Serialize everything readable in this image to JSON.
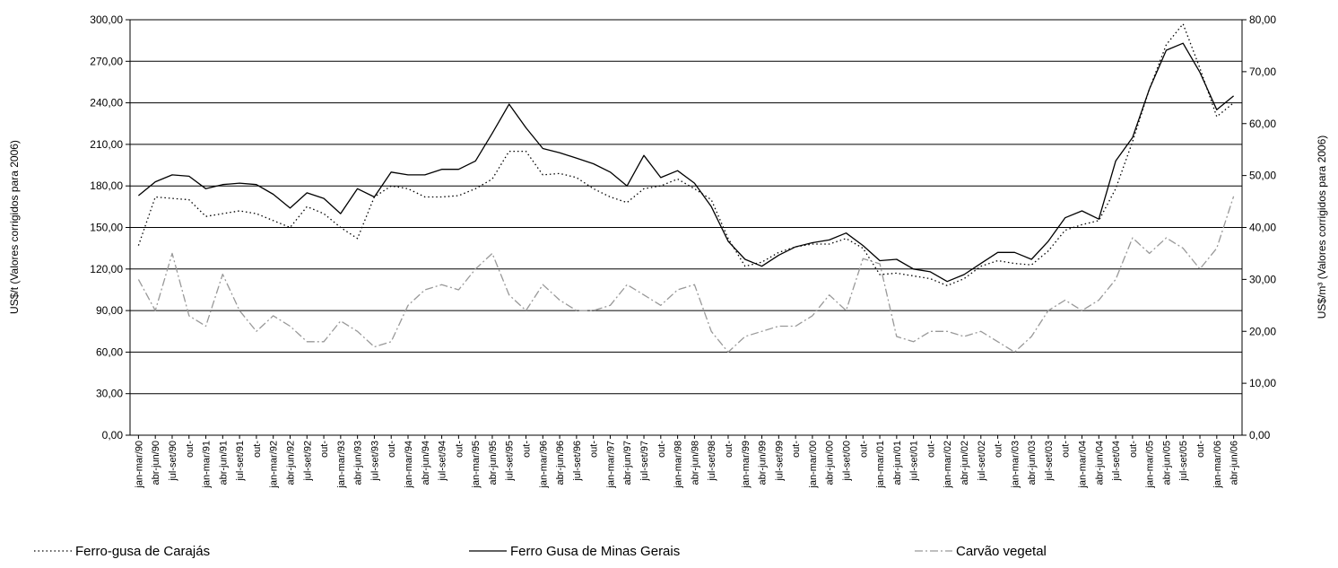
{
  "chart_data": {
    "type": "line",
    "y_label": "US$/t (Valores corrigidos para 2006)",
    "y2_label": "US$/m³ (Valores corrigidos para 2006)",
    "categories": [
      "jan-mar/90",
      "abr-jun/90",
      "jul-set/90",
      "out-",
      "jan-mar/91",
      "abr-jun/91",
      "jul-set/91",
      "out-",
      "jan-mar/92",
      "abr-jun/92",
      "jul-set/92",
      "out-",
      "jan-mar/93",
      "abr-jun/93",
      "jul-set/93",
      "out-",
      "jan-mar/94",
      "abr-jun/94",
      "jul-set/94",
      "out-",
      "jan-mar/95",
      "abr-jun/95",
      "jul-set/95",
      "out-",
      "jan-mar/96",
      "abr-jun/96",
      "jul-set/96",
      "out-",
      "jan-mar/97",
      "abr-jun/97",
      "jul-set/97",
      "out-",
      "jan-mar/98",
      "abr-jun/98",
      "jul-set/98",
      "out-",
      "jan-mar/99",
      "abr-jun/99",
      "jul-set/99",
      "out-",
      "jan-mar/00",
      "abr-jun/00",
      "jul-set/00",
      "out-",
      "jan-mar/01",
      "abr-jun/01",
      "jul-set/01",
      "out-",
      "jan-mar/02",
      "abr-jun/02",
      "jul-set/02",
      "out-",
      "jan-mar/03",
      "abr-jun/03",
      "jul-set/03",
      "out-",
      "jan-mar/04",
      "abr-jun/04",
      "jul-set/04",
      "out-",
      "jan-mar/05",
      "abr-jun/05",
      "jul-set/05",
      "out-",
      "jan-mar/06",
      "abr-jun/06"
    ],
    "series": [
      {
        "name": "Ferro-gusa de Carajás",
        "color": "#000000",
        "line_style": "dotted",
        "values": [
          137,
          172,
          171,
          170,
          158,
          160,
          162,
          160,
          155,
          150,
          165,
          160,
          150,
          142,
          172,
          180,
          178,
          172,
          172,
          173,
          178,
          185,
          205,
          205,
          188,
          189,
          186,
          178,
          172,
          168,
          178,
          180,
          185,
          178,
          170,
          142,
          122,
          125,
          132,
          136,
          138,
          138,
          142,
          135,
          116,
          117,
          115,
          113,
          108,
          113,
          122,
          126,
          124,
          123,
          133,
          148,
          152,
          155,
          178,
          212,
          250,
          282,
          297,
          265,
          230,
          240
        ]
      },
      {
        "name": "Ferro Gusa de Minas Gerais",
        "color": "#000000",
        "line_style": "solid",
        "values": [
          173,
          183,
          188,
          187,
          178,
          181,
          182,
          181,
          174,
          164,
          175,
          171,
          160,
          178,
          172,
          190,
          188,
          188,
          192,
          192,
          198,
          218,
          239,
          222,
          207,
          204,
          200,
          196,
          190,
          180,
          202,
          186,
          191,
          182,
          165,
          140,
          127,
          122,
          130,
          136,
          139,
          141,
          146,
          137,
          126,
          127,
          120,
          118,
          111,
          116,
          124,
          132,
          132,
          127,
          140,
          157,
          162,
          156,
          198,
          215,
          250,
          278,
          283,
          262,
          235,
          245
        ]
      },
      {
        "name": "Carvão vegetal",
        "color": "#999999",
        "line_style": "dashdot",
        "axis": "y2",
        "values": [
          30,
          24,
          35,
          23,
          21,
          31,
          24,
          20,
          23,
          21,
          18,
          18,
          22,
          20,
          17,
          18,
          25,
          28,
          29,
          28,
          32,
          35,
          27,
          24,
          29,
          26,
          24,
          24,
          25,
          29,
          27,
          25,
          28,
          29,
          20,
          16,
          19,
          20,
          21,
          21,
          23,
          27,
          24,
          34,
          33,
          19,
          18,
          20,
          20,
          19,
          20,
          18,
          16,
          19,
          24,
          26,
          24,
          26,
          30,
          38,
          35,
          38,
          36,
          32,
          36,
          46
        ]
      }
    ],
    "ylim": [
      0,
      300
    ],
    "yticks": [
      {
        "value": 0,
        "label": "0,00"
      },
      {
        "value": 30,
        "label": "30,00"
      },
      {
        "value": 60,
        "label": "60,00"
      },
      {
        "value": 90,
        "label": "90,00"
      },
      {
        "value": 120,
        "label": "120,00"
      },
      {
        "value": 150,
        "label": "150,00"
      },
      {
        "value": 180,
        "label": "180,00"
      },
      {
        "value": 210,
        "label": "210,00"
      },
      {
        "value": 240,
        "label": "240,00"
      },
      {
        "value": 270,
        "label": "270,00"
      },
      {
        "value": 300,
        "label": "300,00"
      }
    ],
    "y2lim": [
      0,
      80
    ],
    "y2ticks": [
      {
        "value": 0,
        "label": "0,00"
      },
      {
        "value": 10,
        "label": "10,00"
      },
      {
        "value": 20,
        "label": "20,00"
      },
      {
        "value": 30,
        "label": "30,00"
      },
      {
        "value": 40,
        "label": "40,00"
      },
      {
        "value": 50,
        "label": "50,00"
      },
      {
        "value": 60,
        "label": "60,00"
      },
      {
        "value": 70,
        "label": "70,00"
      },
      {
        "value": 80,
        "label": "80,00"
      }
    ],
    "grid": true,
    "legend": "bottom"
  }
}
